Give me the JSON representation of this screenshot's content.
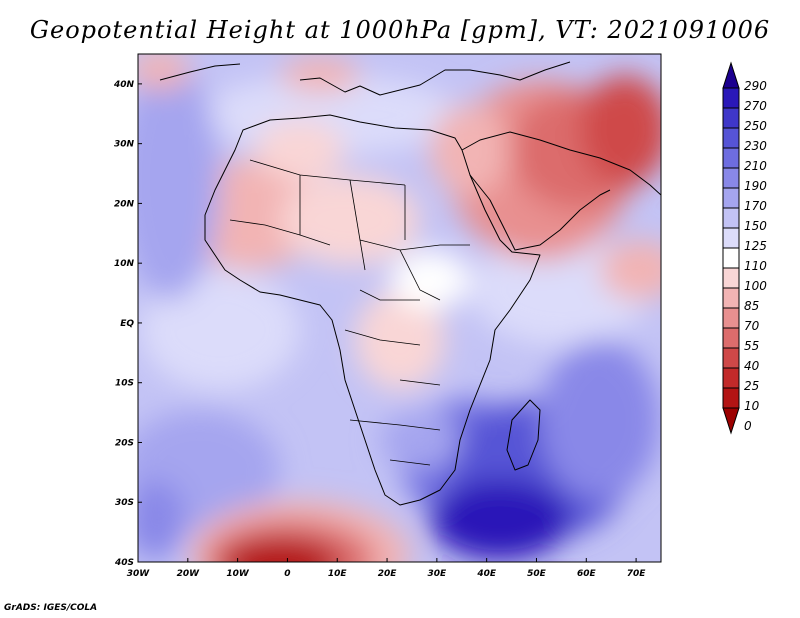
{
  "title": "Geopotential Height at 1000hPa [gpm], VT: 2021091006",
  "credit": "GrADS: IGES/COLA",
  "map": {
    "lon_range": [
      -30,
      75
    ],
    "lat_range": [
      -40,
      45
    ],
    "lon_ticks": [
      "30W",
      "20W",
      "10W",
      "0",
      "10E",
      "20E",
      "30E",
      "40E",
      "50E",
      "60E",
      "70E"
    ],
    "lat_ticks": [
      "40N",
      "30N",
      "20N",
      "10N",
      "EQ",
      "10S",
      "20S",
      "30S",
      "40S"
    ],
    "field_features": [
      {
        "name": "background-ocean",
        "value": 135
      },
      {
        "name": "sahara-low",
        "value": 92
      },
      {
        "name": "west-africa-low",
        "value": 88
      },
      {
        "name": "arabian-heat-low",
        "value": 55
      },
      {
        "name": "iran-pakistan-low",
        "value": 35
      },
      {
        "name": "southern-africa-high",
        "value": 230
      },
      {
        "name": "madagascar-high",
        "value": 270
      },
      {
        "name": "south-atlantic-low",
        "value": 8
      },
      {
        "name": "central-africa-mild",
        "value": 105
      }
    ]
  },
  "colorbar": {
    "levels": [
      "290",
      "270",
      "250",
      "230",
      "210",
      "190",
      "170",
      "150",
      "125",
      "110",
      "100",
      "85",
      "70",
      "55",
      "40",
      "25",
      "10",
      "0"
    ],
    "colors": [
      "#1c008f",
      "#2a18b8",
      "#3f37c9",
      "#5654d6",
      "#6e6de0",
      "#8988e8",
      "#a5a5ef",
      "#c3c3f5",
      "#dcdcfa",
      "#ffffff",
      "#f9d6d6",
      "#f2b4b4",
      "#e89090",
      "#dc6c6c",
      "#cf4848",
      "#c22a2a",
      "#b31414",
      "#9c0000"
    ]
  }
}
